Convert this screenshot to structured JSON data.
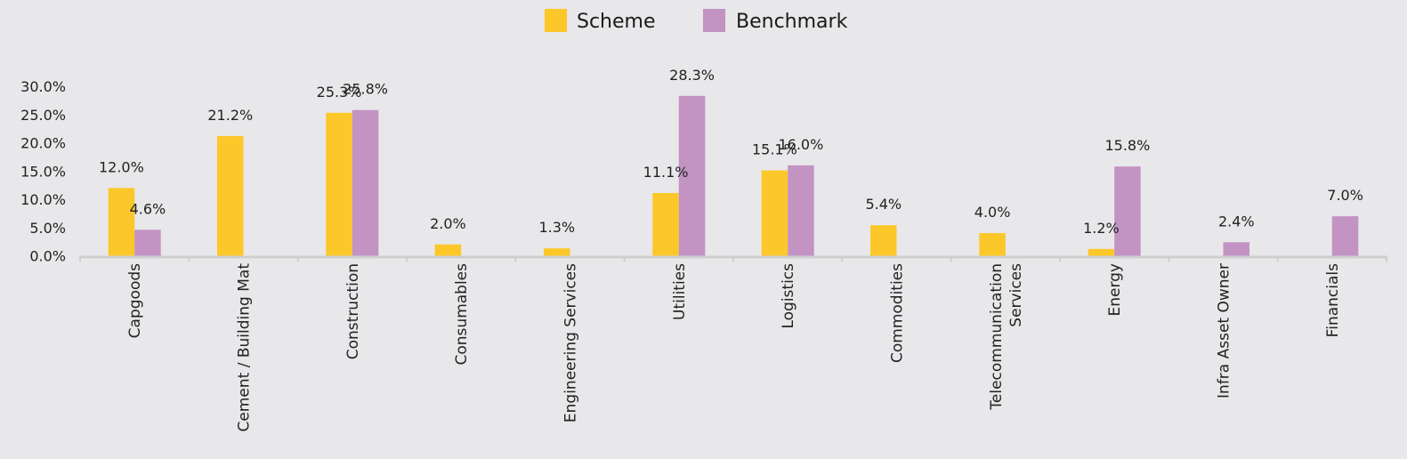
{
  "colors": {
    "scheme": "#fcc729",
    "benchmark": "#c293c3",
    "axis": "#cfcfcf",
    "background": "#e8e7e9"
  },
  "chart_data": {
    "type": "bar",
    "categories": [
      "Capgoods",
      "Cement / Building Mat",
      "Construction",
      "Consumables",
      "Engineering Services",
      "Utilities",
      "Logistics",
      "Commodities",
      "Telecommunication Services",
      "Energy",
      "Infra Asset Owner",
      "Financials"
    ],
    "series": [
      {
        "name": "Scheme",
        "values": [
          12.0,
          21.2,
          25.3,
          2.0,
          1.3,
          11.1,
          15.1,
          5.4,
          4.0,
          1.2,
          null,
          null
        ],
        "labels": [
          "12.0%",
          "21.2%",
          "25.3%",
          "2.0%",
          "1.3%",
          "11.1%",
          "15.1%",
          "5.4%",
          "4.0%",
          "1.2%",
          null,
          null
        ]
      },
      {
        "name": "Benchmark",
        "values": [
          4.6,
          null,
          25.8,
          null,
          null,
          28.3,
          16.0,
          null,
          null,
          15.8,
          2.4,
          7.0
        ],
        "labels": [
          "4.6%",
          null,
          "25.8%",
          null,
          null,
          "28.3%",
          "16.0%",
          null,
          null,
          "15.8%",
          "2.4%",
          "7.0%"
        ]
      }
    ],
    "yticks": [
      "0.0%",
      "5.0%",
      "10.0%",
      "15.0%",
      "20.0%",
      "25.0%",
      "30.0%"
    ],
    "ylim": [
      0,
      30
    ],
    "legend_position": "top-center",
    "grid": false,
    "title": "",
    "xlabel": "",
    "ylabel": ""
  }
}
